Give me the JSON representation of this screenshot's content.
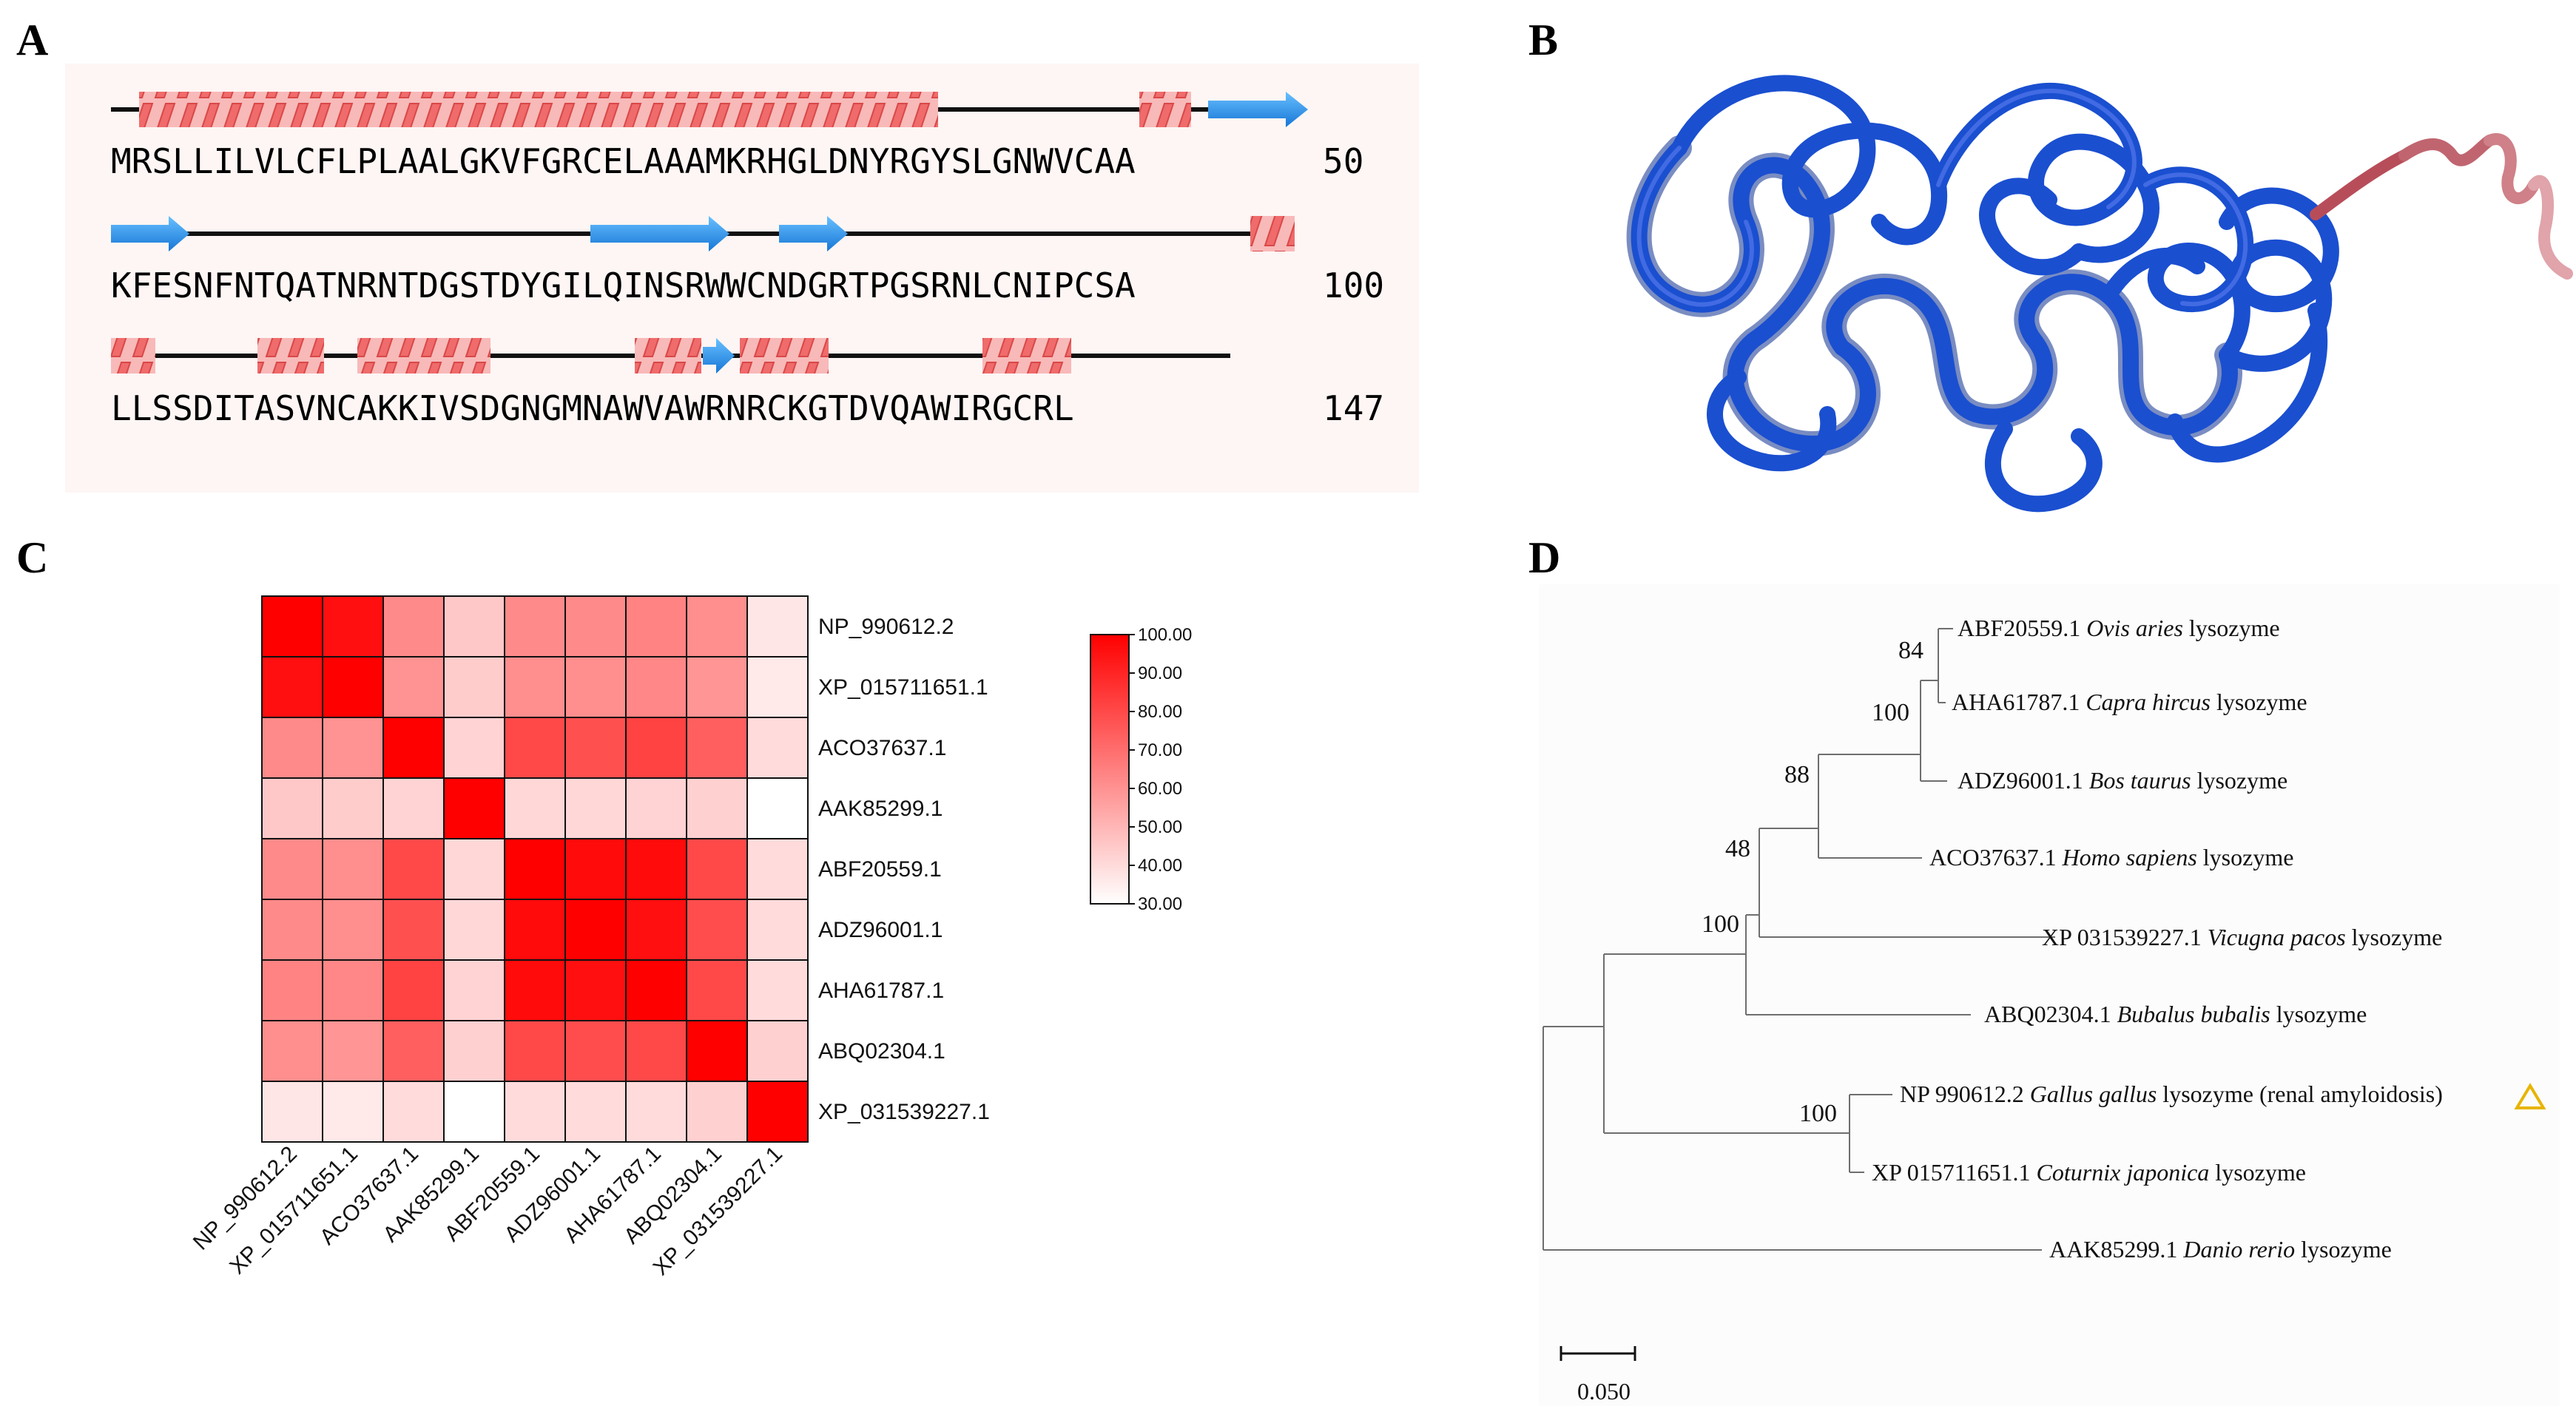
{
  "panels": {
    "a": "A",
    "b": "B",
    "c": "C",
    "d": "D"
  },
  "colors": {
    "helix": "#f06b6b",
    "strand": "#2a96e8",
    "structure_blue": "#1a4fd0",
    "structure_tail": "#b84d5a",
    "heat_max": "#ff0000",
    "triangle": "#e8b400"
  },
  "sequence": {
    "lines": [
      {
        "text": "MRSLLILVLCFLPLAALGKVFGRCELAAAMKRHGLDNYRGYSLGNWVCAA",
        "number": "50"
      },
      {
        "text": "KFESNFNTQATNRNTDGSTDYGILQINSRWWCNDGRTPGSRNLCNIPCSA",
        "number": "100"
      },
      {
        "text": "LLSSDITASVNCAKKIVSDGNGMNAWVAWRNRCKGTDVQAWIRGCRL",
        "number": "147"
      }
    ]
  },
  "chart_data": {
    "type": "heatmap",
    "rows": [
      "NP_990612.2",
      "XP_015711651.1",
      "ACO37637.1",
      "AAK85299.1",
      "ABF20559.1",
      "ADZ96001.1",
      "AHA61787.1",
      "ABQ02304.1",
      "XP_031539227.1"
    ],
    "columns": [
      "NP_990612.2",
      "XP_015711651.1",
      "ACO37637.1",
      "AAK85299.1",
      "ABF20559.1",
      "ADZ96001.1",
      "AHA61787.1",
      "ABQ02304.1",
      "XP_031539227.1"
    ],
    "values": [
      [
        100,
        96,
        62,
        45,
        62,
        62,
        64,
        61,
        37
      ],
      [
        96,
        100,
        60,
        44,
        61,
        61,
        63,
        59,
        36
      ],
      [
        62,
        60,
        100,
        42,
        80,
        78,
        82,
        74,
        40
      ],
      [
        45,
        44,
        42,
        100,
        41,
        41,
        42,
        43,
        30
      ],
      [
        62,
        61,
        80,
        41,
        100,
        97,
        97,
        80,
        40
      ],
      [
        62,
        61,
        78,
        41,
        97,
        100,
        96,
        79,
        40
      ],
      [
        64,
        63,
        82,
        42,
        97,
        96,
        100,
        80,
        40
      ],
      [
        61,
        59,
        74,
        43,
        80,
        79,
        80,
        100,
        43
      ],
      [
        37,
        36,
        40,
        30,
        40,
        40,
        40,
        43,
        100
      ]
    ],
    "scale": {
      "min": 30,
      "max": 100,
      "ticks": [
        "100.00",
        "90.00",
        "80.00",
        "70.00",
        "60.00",
        "50.00",
        "40.00",
        "30.00"
      ]
    }
  },
  "tree": {
    "leaves": [
      {
        "id": "ABF20559.1",
        "species": "Ovis aries",
        "suffix": "lysozyme"
      },
      {
        "id": "AHA61787.1",
        "species": "Capra hircus",
        "suffix": "lysozyme"
      },
      {
        "id": "ADZ96001.1",
        "species": "Bos taurus",
        "suffix": "lysozyme"
      },
      {
        "id": "ACO37637.1",
        "species": "Homo sapiens",
        "suffix": "lysozyme"
      },
      {
        "id": "XP 031539227.1",
        "species": "Vicugna pacos",
        "suffix": "lysozyme"
      },
      {
        "id": "ABQ02304.1",
        "species": "Bubalus bubalis",
        "suffix": "lysozyme"
      },
      {
        "id": "NP 990612.2",
        "species": "Gallus gallus",
        "suffix": "lysozyme (renal amyloidosis)"
      },
      {
        "id": "XP 015711651.1",
        "species": "Coturnix japonica",
        "suffix": "lysozyme"
      },
      {
        "id": "AAK85299.1",
        "species": "Danio rerio",
        "suffix": "lysozyme"
      }
    ],
    "bootstrap": [
      "84",
      "100",
      "88",
      "48",
      "100",
      "100"
    ],
    "scale_label": "0.050"
  }
}
